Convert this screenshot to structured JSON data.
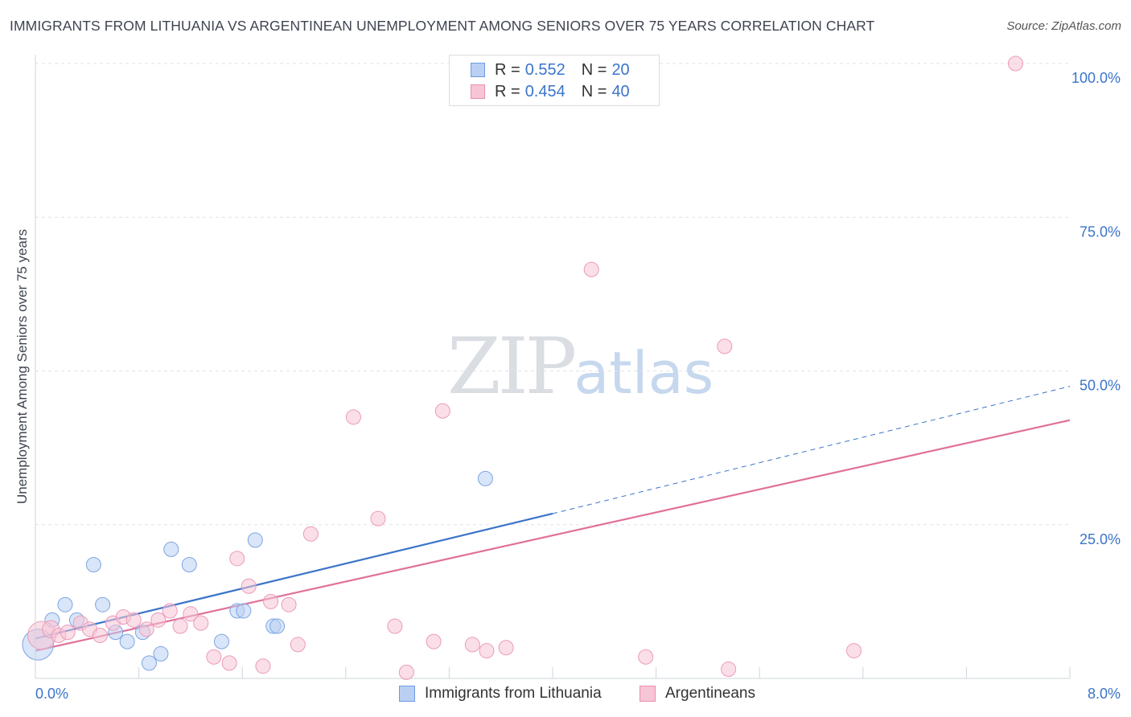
{
  "title": "IMMIGRANTS FROM LITHUANIA VS ARGENTINEAN UNEMPLOYMENT AMONG SENIORS OVER 75 YEARS CORRELATION CHART",
  "source": "Source: ZipAtlas.com",
  "watermark": {
    "zip": "ZIP",
    "atlas": "atlas"
  },
  "colors": {
    "blue": "#3b74c9",
    "blue_fill": "#b9d0f2",
    "pink": "#e0709a",
    "pink_fill": "#f6c5d6",
    "grid": "#dfe3e8"
  },
  "legend": {
    "series1": {
      "r_label": "R =",
      "r_value": "0.552",
      "n_label": "N =",
      "n_value": "20"
    },
    "series2": {
      "r_label": "R =",
      "r_value": "0.454",
      "n_label": "N =",
      "n_value": "40"
    }
  },
  "bottom_legend": {
    "series1": "Immigrants from Lithuania",
    "series2": "Argentineans"
  },
  "chart_data": {
    "type": "scatter",
    "title": "IMMIGRANTS FROM LITHUANIA VS ARGENTINEAN UNEMPLOYMENT AMONG SENIORS OVER 75 YEARS CORRELATION CHART",
    "xlabel": "",
    "ylabel": "Unemployment Among Seniors over 75 years",
    "xlim": [
      0,
      8
    ],
    "ylim": [
      0,
      100
    ],
    "x_tick_labels": {
      "min": "0.0%",
      "max": "8.0%"
    },
    "y_ticks": [
      {
        "value": 25,
        "label": "25.0%"
      },
      {
        "value": 50,
        "label": "50.0%"
      },
      {
        "value": 75,
        "label": "75.0%"
      },
      {
        "value": 100,
        "label": "100.0%"
      }
    ],
    "series": [
      {
        "name": "Immigrants from Lithuania",
        "color": "#3b74c9",
        "r": 0.552,
        "n": 20,
        "trend": {
          "x0": 0,
          "y0": 6.5,
          "x1": 4.0,
          "y1": 26.8,
          "dashed_to_x": 8.0,
          "dashed_to_y": 47.5
        },
        "points": [
          {
            "x": 0.02,
            "y": 5.5,
            "size": 22
          },
          {
            "x": 0.13,
            "y": 9.5,
            "size": 10
          },
          {
            "x": 0.23,
            "y": 12.0,
            "size": 10
          },
          {
            "x": 0.32,
            "y": 9.5,
            "size": 10
          },
          {
            "x": 0.45,
            "y": 18.5,
            "size": 10
          },
          {
            "x": 0.52,
            "y": 12.0,
            "size": 10
          },
          {
            "x": 0.62,
            "y": 7.5,
            "size": 10
          },
          {
            "x": 0.71,
            "y": 6.0,
            "size": 10
          },
          {
            "x": 0.83,
            "y": 7.5,
            "size": 10
          },
          {
            "x": 0.88,
            "y": 2.5,
            "size": 10
          },
          {
            "x": 0.97,
            "y": 4.0,
            "size": 10
          },
          {
            "x": 1.05,
            "y": 21.0,
            "size": 10
          },
          {
            "x": 1.19,
            "y": 18.5,
            "size": 10
          },
          {
            "x": 1.44,
            "y": 6.0,
            "size": 10
          },
          {
            "x": 1.56,
            "y": 11.0,
            "size": 10
          },
          {
            "x": 1.61,
            "y": 11.0,
            "size": 10
          },
          {
            "x": 1.7,
            "y": 22.5,
            "size": 10
          },
          {
            "x": 1.84,
            "y": 8.5,
            "size": 10
          },
          {
            "x": 1.87,
            "y": 8.5,
            "size": 10
          },
          {
            "x": 3.48,
            "y": 32.5,
            "size": 10
          }
        ]
      },
      {
        "name": "Argentineans",
        "color": "#e0709a",
        "r": 0.454,
        "n": 40,
        "trend": {
          "x0": 0,
          "y0": 4.5,
          "x1": 8.0,
          "y1": 42.0
        },
        "points": [
          {
            "x": 0.05,
            "y": 7.0,
            "size": 20
          },
          {
            "x": 0.12,
            "y": 8.0,
            "size": 12
          },
          {
            "x": 0.18,
            "y": 7.0,
            "size": 10
          },
          {
            "x": 0.25,
            "y": 7.5,
            "size": 10
          },
          {
            "x": 0.35,
            "y": 9.0,
            "size": 10
          },
          {
            "x": 0.42,
            "y": 8.0,
            "size": 10
          },
          {
            "x": 0.5,
            "y": 7.0,
            "size": 10
          },
          {
            "x": 0.6,
            "y": 9.0,
            "size": 10
          },
          {
            "x": 0.68,
            "y": 10.0,
            "size": 10
          },
          {
            "x": 0.76,
            "y": 9.5,
            "size": 10
          },
          {
            "x": 0.86,
            "y": 8.0,
            "size": 10
          },
          {
            "x": 0.95,
            "y": 9.5,
            "size": 10
          },
          {
            "x": 1.04,
            "y": 11.0,
            "size": 10
          },
          {
            "x": 1.12,
            "y": 8.5,
            "size": 10
          },
          {
            "x": 1.2,
            "y": 10.5,
            "size": 10
          },
          {
            "x": 1.28,
            "y": 9.0,
            "size": 10
          },
          {
            "x": 1.38,
            "y": 3.5,
            "size": 10
          },
          {
            "x": 1.5,
            "y": 2.5,
            "size": 10
          },
          {
            "x": 1.56,
            "y": 19.5,
            "size": 10
          },
          {
            "x": 1.65,
            "y": 15.0,
            "size": 10
          },
          {
            "x": 1.76,
            "y": 2.0,
            "size": 10
          },
          {
            "x": 1.82,
            "y": 12.5,
            "size": 10
          },
          {
            "x": 1.96,
            "y": 12.0,
            "size": 10
          },
          {
            "x": 2.03,
            "y": 5.5,
            "size": 10
          },
          {
            "x": 2.13,
            "y": 23.5,
            "size": 10
          },
          {
            "x": 2.46,
            "y": 42.5,
            "size": 10
          },
          {
            "x": 2.65,
            "y": 26.0,
            "size": 10
          },
          {
            "x": 2.78,
            "y": 8.5,
            "size": 10
          },
          {
            "x": 2.87,
            "y": 1.0,
            "size": 10
          },
          {
            "x": 3.08,
            "y": 6.0,
            "size": 10
          },
          {
            "x": 3.15,
            "y": 43.5,
            "size": 10
          },
          {
            "x": 3.38,
            "y": 5.5,
            "size": 10
          },
          {
            "x": 3.49,
            "y": 4.5,
            "size": 10
          },
          {
            "x": 3.64,
            "y": 5.0,
            "size": 10
          },
          {
            "x": 4.3,
            "y": 66.5,
            "size": 10
          },
          {
            "x": 4.72,
            "y": 3.5,
            "size": 10
          },
          {
            "x": 5.33,
            "y": 54.0,
            "size": 10
          },
          {
            "x": 5.36,
            "y": 1.5,
            "size": 10
          },
          {
            "x": 6.33,
            "y": 4.5,
            "size": 10
          },
          {
            "x": 7.58,
            "y": 100.0,
            "size": 10
          }
        ]
      }
    ]
  }
}
